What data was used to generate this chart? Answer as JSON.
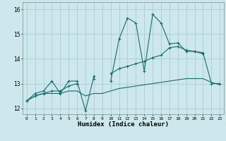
{
  "xlabel": "Humidex (Indice chaleur)",
  "bg_color": "#cce8ec",
  "grid_color": "#aacdd2",
  "line_color": "#1a6b6b",
  "xlim": [
    -0.5,
    23.5
  ],
  "ylim": [
    11.75,
    16.3
  ],
  "yticks": [
    12,
    13,
    14,
    15,
    16
  ],
  "xticks": [
    0,
    1,
    2,
    3,
    4,
    5,
    6,
    7,
    8,
    9,
    10,
    11,
    12,
    13,
    14,
    15,
    16,
    17,
    18,
    19,
    20,
    21,
    22,
    23
  ],
  "x": [
    0,
    1,
    2,
    3,
    4,
    5,
    6,
    7,
    8,
    9,
    10,
    11,
    12,
    13,
    14,
    15,
    16,
    17,
    18,
    19,
    20,
    21,
    22,
    23
  ],
  "line1": [
    12.3,
    12.6,
    12.7,
    13.1,
    12.6,
    13.1,
    13.1,
    11.9,
    13.3,
    null,
    13.1,
    14.8,
    15.65,
    15.45,
    13.5,
    15.8,
    15.45,
    14.6,
    14.65,
    14.3,
    14.3,
    14.25,
    13.0,
    13.0
  ],
  "line2": [
    12.3,
    12.5,
    12.6,
    12.6,
    12.6,
    12.7,
    12.7,
    12.5,
    12.6,
    12.6,
    12.7,
    12.8,
    12.85,
    12.9,
    12.95,
    13.0,
    13.05,
    13.1,
    13.15,
    13.2,
    13.2,
    13.2,
    13.05,
    12.95
  ],
  "line3": [
    12.3,
    12.5,
    12.6,
    12.7,
    12.7,
    12.9,
    13.0,
    null,
    13.2,
    null,
    13.4,
    13.6,
    13.7,
    13.8,
    13.9,
    14.05,
    14.15,
    14.45,
    14.5,
    14.35,
    14.3,
    14.2,
    null,
    null
  ]
}
